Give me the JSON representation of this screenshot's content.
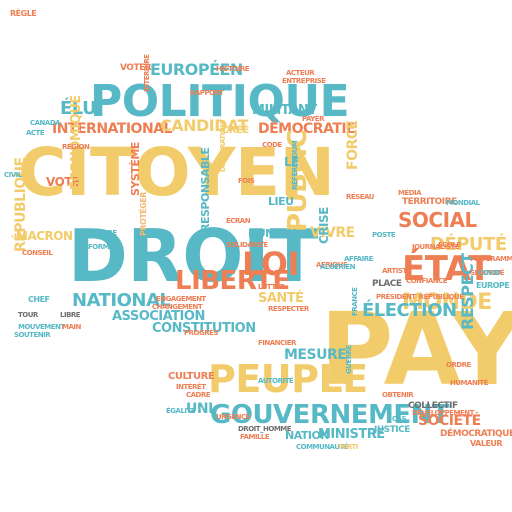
{
  "title": "",
  "colors": {
    "yellow": "#f2cc6b",
    "orange": "#ee7f55",
    "teal": "#58b9c6",
    "gray": "#6e6e6e",
    "sand": "#f1b873"
  },
  "words": [
    {
      "text": "CITOYEN",
      "color": "yellow"
    },
    {
      "text": "DROIT",
      "color": "teal"
    },
    {
      "text": "PAY",
      "color": "yellow"
    },
    {
      "text": "POLITIQUE",
      "color": "teal"
    },
    {
      "text": "PEUPLE",
      "color": "yellow"
    },
    {
      "text": "GOUVERNEMENT",
      "color": "teal"
    },
    {
      "text": "LIBERTÉ",
      "color": "orange"
    },
    {
      "text": "LOI",
      "color": "orange"
    },
    {
      "text": "ÉTAT",
      "color": "orange"
    },
    {
      "text": "MONDE",
      "color": "yellow"
    },
    {
      "text": "ÉLECTION",
      "color": "teal"
    },
    {
      "text": "NATIONAL",
      "color": "teal"
    },
    {
      "text": "SOCIAL",
      "color": "orange"
    },
    {
      "text": "DÉPUTÉ",
      "color": "yellow"
    },
    {
      "text": "INTERNATIONAL",
      "color": "orange"
    },
    {
      "text": "CANDIDAT",
      "color": "yellow"
    },
    {
      "text": "EUROPÉEN",
      "color": "teal"
    },
    {
      "text": "ÉLU",
      "color": "teal"
    },
    {
      "text": "DÉMOCRATIE",
      "color": "orange"
    },
    {
      "text": "PUBLIC",
      "color": "yellow"
    },
    {
      "text": "RÉPUBLIQUE",
      "color": "yellow"
    },
    {
      "text": "CONSTITUTION",
      "color": "teal"
    },
    {
      "text": "ASSOCIATION",
      "color": "teal"
    },
    {
      "text": "MESURE",
      "color": "teal"
    },
    {
      "text": "SOCIÉTÉ",
      "color": "orange"
    },
    {
      "text": "NATION",
      "color": "teal"
    },
    {
      "text": "MINISTRE",
      "color": "teal"
    },
    {
      "text": "SANTÉ",
      "color": "yellow"
    },
    {
      "text": "VIVRE",
      "color": "yellow"
    },
    {
      "text": "FORCE",
      "color": "yellow"
    },
    {
      "text": "MACRON",
      "color": "yellow"
    },
    {
      "text": "VOTE",
      "color": "orange"
    },
    {
      "text": "MILITANT",
      "color": "teal"
    },
    {
      "text": "HUMAIN",
      "color": "teal"
    },
    {
      "text": "CRISE",
      "color": "teal"
    },
    {
      "text": "CULTURE",
      "color": "orange"
    },
    {
      "text": "UNI",
      "color": "teal"
    },
    {
      "text": "ÉCONOMIQUE",
      "color": "yellow"
    },
    {
      "text": "SYSTÈME",
      "color": "orange"
    },
    {
      "text": "RESPONSABLE",
      "color": "teal"
    },
    {
      "text": "CRÉÉ",
      "color": "yellow"
    },
    {
      "text": "RESPECT",
      "color": "teal"
    },
    {
      "text": "PLACE",
      "color": "gray"
    },
    {
      "text": "EUROPE",
      "color": "teal"
    },
    {
      "text": "TERRITOIRE",
      "color": "orange"
    },
    {
      "text": "VOTER",
      "color": "orange"
    },
    {
      "text": "LIEU",
      "color": "teal"
    },
    {
      "text": "COLLECTIF",
      "color": "gray"
    },
    {
      "text": "JUSTICE",
      "color": "teal"
    },
    {
      "text": "DÉMOCRATIQUE",
      "color": "orange"
    },
    {
      "text": "VALEUR",
      "color": "orange"
    },
    {
      "text": "MÉDIA",
      "color": "orange"
    },
    {
      "text": "PRÉSIDENT_RÉPUBLIQUE",
      "color": "orange"
    },
    {
      "text": "LUTTER",
      "color": "orange"
    },
    {
      "text": "CHEF",
      "color": "teal"
    },
    {
      "text": "CONSEIL",
      "color": "orange"
    },
    {
      "text": "LE",
      "color": "teal"
    },
    {
      "text": "HUMANITÉ",
      "color": "orange"
    },
    {
      "text": "PROTÉGER",
      "color": "sand"
    },
    {
      "text": "DROIT_HOMME",
      "color": "gray"
    },
    {
      "text": "COMMUNAUTÉ",
      "color": "teal"
    },
    {
      "text": "ÉGALITÉ",
      "color": "teal"
    },
    {
      "text": "SOLIDARITÉ",
      "color": "orange"
    },
    {
      "text": "ENGAGEMENT",
      "color": "orange"
    },
    {
      "text": "SÉCURITÉ",
      "color": "orange"
    },
    {
      "text": "AFFAIRE",
      "color": "teal"
    },
    {
      "text": "ACTEUR",
      "color": "orange"
    },
    {
      "text": "ENTREPRISE",
      "color": "orange"
    },
    {
      "text": "HISTOIRE",
      "color": "orange"
    },
    {
      "text": "RAPPORT",
      "color": "orange"
    },
    {
      "text": "AFRIQUE",
      "color": "orange"
    },
    {
      "text": "CANADA",
      "color": "teal"
    },
    {
      "text": "RÉGION",
      "color": "orange"
    },
    {
      "text": "PARTI",
      "color": "yellow"
    },
    {
      "text": "CIVIL",
      "color": "teal"
    },
    {
      "text": "TOUR",
      "color": "gray"
    },
    {
      "text": "LIBRE",
      "color": "gray"
    },
    {
      "text": "FRANCE",
      "color": "teal"
    },
    {
      "text": "GUERRE",
      "color": "teal"
    },
    {
      "text": "ORDRE",
      "color": "orange"
    },
    {
      "text": "MOUVEMENT",
      "color": "teal"
    },
    {
      "text": "FINANCIER",
      "color": "orange"
    },
    {
      "text": "AUTORITÉ",
      "color": "teal"
    },
    {
      "text": "DÉCLARATION",
      "color": "yellow"
    },
    {
      "text": "ÉCRAN",
      "color": "orange"
    },
    {
      "text": "CHANGEMENT",
      "color": "orange"
    },
    {
      "text": "PROGRÈS",
      "color": "orange"
    },
    {
      "text": "RESPECTER",
      "color": "orange"
    },
    {
      "text": "RÉFÉRENDUM",
      "color": "teal"
    },
    {
      "text": "URGENCE",
      "color": "orange"
    },
    {
      "text": "ACTE",
      "color": "teal"
    },
    {
      "text": "CODE",
      "color": "orange"
    },
    {
      "text": "COVID",
      "color": "teal"
    },
    {
      "text": "PROGRAMME",
      "color": "orange"
    },
    {
      "text": "DÉVELOPPEMENT",
      "color": "orange"
    },
    {
      "text": "CADRE",
      "color": "orange"
    },
    {
      "text": "INTÉRÊT",
      "color": "orange"
    },
    {
      "text": "INTERDIRE",
      "color": "orange"
    },
    {
      "text": "SOUTENIR",
      "color": "teal"
    },
    {
      "text": "CONFIANCE",
      "color": "orange"
    },
    {
      "text": "MAIN",
      "color": "orange"
    },
    {
      "text": "ÉCOLE",
      "color": "orange"
    },
    {
      "text": "JOURNALISTE",
      "color": "orange"
    },
    {
      "text": "FAMILLE",
      "color": "orange"
    },
    {
      "text": "ARTISTE",
      "color": "orange"
    },
    {
      "text": "OBTENIR",
      "color": "orange"
    },
    {
      "text": "PAYER",
      "color": "orange"
    },
    {
      "text": "POSTE",
      "color": "teal"
    },
    {
      "text": "ALGÉRIEN",
      "color": "teal"
    },
    {
      "text": "RÉSEAU",
      "color": "orange"
    },
    {
      "text": "MONDIAL",
      "color": "teal"
    },
    {
      "text": "TERRE",
      "color": "teal"
    },
    {
      "text": "FOIS",
      "color": "orange"
    },
    {
      "text": "FORME",
      "color": "teal"
    },
    {
      "text": "CAS",
      "color": "teal"
    },
    {
      "text": "RÈGLE",
      "color": "orange"
    }
  ]
}
